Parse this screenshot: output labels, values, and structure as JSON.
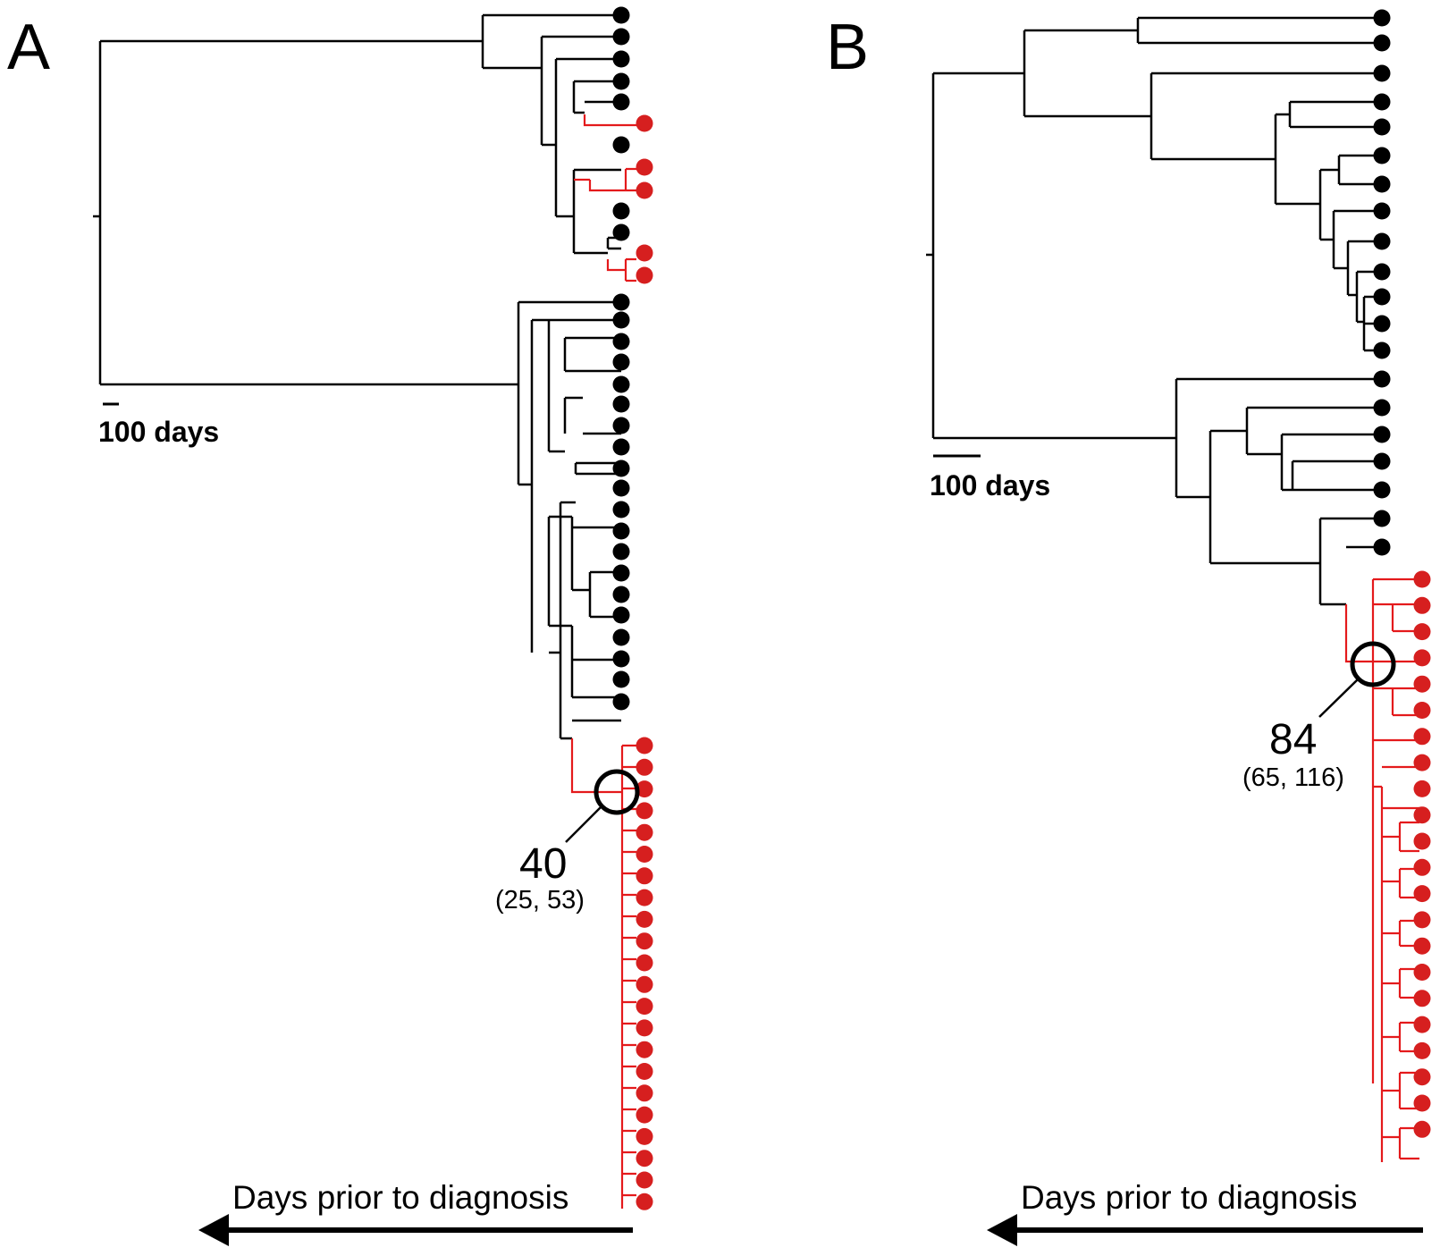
{
  "colors": {
    "background": "#ffffff",
    "tree": "#000000",
    "highlight": "#e41a1c",
    "highlight_dots": "#d61f1f"
  },
  "panels": [
    {
      "letter": "A",
      "scale_bar_label": "100 days",
      "mrca_label": "40",
      "mrca_interval": "(25, 53)",
      "axis_label": "Days prior to diagnosis",
      "tips": {
        "black": 28,
        "red": 26
      }
    },
    {
      "letter": "B",
      "scale_bar_label": "100 days",
      "mrca_label": "84",
      "mrca_interval": "(65, 116)",
      "axis_label": "Days prior to diagnosis",
      "tips": {
        "black": 21,
        "red": 22
      }
    }
  ]
}
